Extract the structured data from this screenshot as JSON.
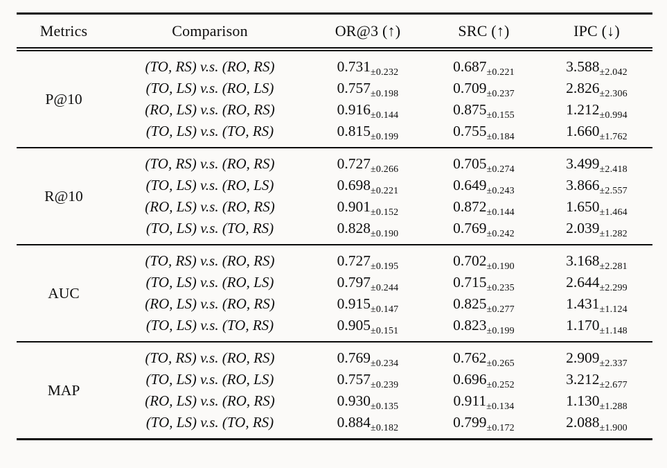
{
  "page": {
    "background_color": "#fbfaf8",
    "text_color": "#0e0e0e"
  },
  "table": {
    "headers": {
      "metrics": "Metrics",
      "comparison": "Comparison",
      "or3": "OR@3 (↑)",
      "src": "SRC (↑)",
      "ipc": "IPC (↓)"
    },
    "groups": [
      {
        "metric": "P@10",
        "rows": [
          {
            "comparison": "(TO, RS) v.s. (RO, RS)",
            "or3": "0.731",
            "or3_std": "±0.232",
            "src": "0.687",
            "src_std": "±0.221",
            "ipc": "3.588",
            "ipc_std": "±2.042"
          },
          {
            "comparison": "(TO, LS) v.s. (RO, LS)",
            "or3": "0.757",
            "or3_std": "±0.198",
            "src": "0.709",
            "src_std": "±0.237",
            "ipc": "2.826",
            "ipc_std": "±2.306"
          },
          {
            "comparison": "(RO, LS) v.s. (RO, RS)",
            "or3": "0.916",
            "or3_std": "±0.144",
            "src": "0.875",
            "src_std": "±0.155",
            "ipc": "1.212",
            "ipc_std": "±0.994"
          },
          {
            "comparison": "(TO, LS) v.s. (TO, RS)",
            "or3": "0.815",
            "or3_std": "±0.199",
            "src": "0.755",
            "src_std": "±0.184",
            "ipc": "1.660",
            "ipc_std": "±1.762"
          }
        ]
      },
      {
        "metric": "R@10",
        "rows": [
          {
            "comparison": "(TO, RS) v.s. (RO, RS)",
            "or3": "0.727",
            "or3_std": "±0.266",
            "src": "0.705",
            "src_std": "±0.274",
            "ipc": "3.499",
            "ipc_std": "±2.418"
          },
          {
            "comparison": "(TO, LS) v.s. (RO, LS)",
            "or3": "0.698",
            "or3_std": "±0.221",
            "src": "0.649",
            "src_std": "±0.243",
            "ipc": "3.866",
            "ipc_std": "±2.557"
          },
          {
            "comparison": "(RO, LS) v.s. (RO, RS)",
            "or3": "0.901",
            "or3_std": "±0.152",
            "src": "0.872",
            "src_std": "±0.144",
            "ipc": "1.650",
            "ipc_std": "±1.464"
          },
          {
            "comparison": "(TO, LS) v.s. (TO, RS)",
            "or3": "0.828",
            "or3_std": "±0.190",
            "src": "0.769",
            "src_std": "±0.242",
            "ipc": "2.039",
            "ipc_std": "±1.282"
          }
        ]
      },
      {
        "metric": "AUC",
        "rows": [
          {
            "comparison": "(TO, RS) v.s. (RO, RS)",
            "or3": "0.727",
            "or3_std": "±0.195",
            "src": "0.702",
            "src_std": "±0.190",
            "ipc": "3.168",
            "ipc_std": "±2.281"
          },
          {
            "comparison": "(TO, LS) v.s. (RO, LS)",
            "or3": "0.797",
            "or3_std": "±0.244",
            "src": "0.715",
            "src_std": "±0.235",
            "ipc": "2.644",
            "ipc_std": "±2.299"
          },
          {
            "comparison": "(RO, LS) v.s. (RO, RS)",
            "or3": "0.915",
            "or3_std": "±0.147",
            "src": "0.825",
            "src_std": "±0.277",
            "ipc": "1.431",
            "ipc_std": "±1.124"
          },
          {
            "comparison": "(TO, LS) v.s. (TO, RS)",
            "or3": "0.905",
            "or3_std": "±0.151",
            "src": "0.823",
            "src_std": "±0.199",
            "ipc": "1.170",
            "ipc_std": "±1.148"
          }
        ]
      },
      {
        "metric": "MAP",
        "rows": [
          {
            "comparison": "(TO, RS) v.s. (RO, RS)",
            "or3": "0.769",
            "or3_std": "±0.234",
            "src": "0.762",
            "src_std": "±0.265",
            "ipc": "2.909",
            "ipc_std": "±2.337"
          },
          {
            "comparison": "(TO, LS) v.s. (RO, LS)",
            "or3": "0.757",
            "or3_std": "±0.239",
            "src": "0.696",
            "src_std": "±0.252",
            "ipc": "3.212",
            "ipc_std": "±2.677"
          },
          {
            "comparison": "(RO, LS) v.s. (RO, RS)",
            "or3": "0.930",
            "or3_std": "±0.135",
            "src": "0.911",
            "src_std": "±0.134",
            "ipc": "1.130",
            "ipc_std": "±1.288"
          },
          {
            "comparison": "(TO, LS) v.s. (TO, RS)",
            "or3": "0.884",
            "or3_std": "±0.182",
            "src": "0.799",
            "src_std": "±0.172",
            "ipc": "2.088",
            "ipc_std": "±1.900"
          }
        ]
      }
    ]
  }
}
